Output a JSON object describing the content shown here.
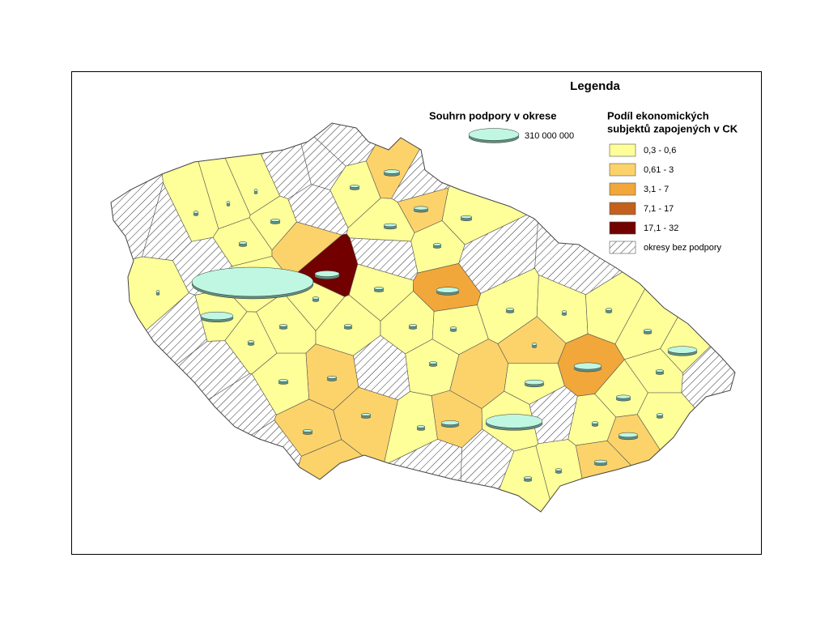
{
  "legend_title": "Legenda",
  "support": {
    "title": "Souhrn podpory v okrese",
    "reference": {
      "value": 310000000,
      "label": "310 000 000"
    }
  },
  "share": {
    "title_lines": [
      "Podíl ekonomických",
      "subjektů zapojených v CK"
    ],
    "classes": [
      {
        "label": "0,3 - 0,6",
        "color": "#ffff99"
      },
      {
        "label": "0,61 - 3",
        "color": "#fcd36a"
      },
      {
        "label": "3,1 - 7",
        "color": "#f2a73a"
      },
      {
        "label": "7,1 - 17",
        "color": "#c4601c"
      },
      {
        "label": "17,1 - 32",
        "color": "#720000"
      },
      {
        "label": "okresy bez podpory",
        "color": "hatch"
      }
    ]
  },
  "districts": [
    {
      "class_index": 5,
      "support": null
    },
    {
      "class_index": 5,
      "support": null
    },
    {
      "class_index": 0,
      "support": 2900000
    },
    {
      "class_index": 0,
      "support": 1300000
    },
    {
      "class_index": 0,
      "support": 1300000
    },
    {
      "class_index": 5,
      "support": null
    },
    {
      "class_index": 5,
      "support": null
    },
    {
      "class_index": 5,
      "support": null
    },
    {
      "class_index": 0,
      "support": 11600000
    },
    {
      "class_index": 5,
      "support": null
    },
    {
      "class_index": 0,
      "support": 11600000
    },
    {
      "class_index": 0,
      "support": 8000000
    },
    {
      "class_index": 5,
      "support": null
    },
    {
      "class_index": 0,
      "support": 1300000
    },
    {
      "class_index": 5,
      "support": null
    },
    {
      "class_index": 0,
      "support": 129000000
    },
    {
      "class_index": 0,
      "support": 1810000000
    },
    {
      "class_index": 4,
      "support": 73000000
    },
    {
      "class_index": 0,
      "support": 5200000
    },
    {
      "class_index": 1,
      "support": null
    },
    {
      "class_index": 5,
      "support": null
    },
    {
      "class_index": 0,
      "support": 11600000
    },
    {
      "class_index": 0,
      "support": 20600000
    },
    {
      "class_index": 1,
      "support": 32000000
    },
    {
      "class_index": 5,
      "support": null
    },
    {
      "class_index": 1,
      "support": 26000000
    },
    {
      "class_index": 0,
      "support": 15800000
    },
    {
      "class_index": 0,
      "support": 8000000
    },
    {
      "class_index": 2,
      "support": 63000000
    },
    {
      "class_index": 5,
      "support": null
    },
    {
      "class_index": 0,
      "support": 8000000
    },
    {
      "class_index": 0,
      "support": 2900000
    },
    {
      "class_index": 0,
      "support": 5200000
    },
    {
      "class_index": 5,
      "support": null
    },
    {
      "class_index": 0,
      "support": 8000000
    },
    {
      "class_index": 0,
      "support": 105000000
    },
    {
      "class_index": 5,
      "support": null
    },
    {
      "class_index": 0,
      "support": 8000000
    },
    {
      "class_index": 2,
      "support": 93000000
    },
    {
      "class_index": 0,
      "support": 26000000
    },
    {
      "class_index": 0,
      "support": 46000000
    },
    {
      "class_index": 1,
      "support": null
    },
    {
      "class_index": 0,
      "support": 8000000
    },
    {
      "class_index": 5,
      "support": null
    },
    {
      "class_index": 1,
      "support": 11600000
    },
    {
      "class_index": 0,
      "support": 11600000
    },
    {
      "class_index": 0,
      "support": 5200000
    },
    {
      "class_index": 0,
      "support": 8000000
    },
    {
      "class_index": 0,
      "support": 8000000
    },
    {
      "class_index": 0,
      "support": 8000000
    },
    {
      "class_index": 0,
      "support": 5200000
    },
    {
      "class_index": 5,
      "support": null
    },
    {
      "class_index": 5,
      "support": null
    },
    {
      "class_index": 1,
      "support": 11600000
    },
    {
      "class_index": 1,
      "support": 11600000
    },
    {
      "class_index": 0,
      "support": 8000000
    },
    {
      "class_index": 1,
      "support": 39000000
    },
    {
      "class_index": 0,
      "support": 395000000
    },
    {
      "class_index": 5,
      "support": null
    },
    {
      "class_index": 0,
      "support": 5200000
    },
    {
      "class_index": 1,
      "support": 46000000
    },
    {
      "class_index": 0,
      "support": 5200000
    },
    {
      "class_index": 1,
      "support": 20600000
    },
    {
      "class_index": 0,
      "support": 8000000
    },
    {
      "class_index": 5,
      "support": null
    },
    {
      "class_index": 5,
      "support": null
    },
    {
      "class_index": 0,
      "support": 5200000
    },
    {
      "class_index": 5,
      "support": null
    },
    {
      "class_index": 1,
      "support": null
    },
    {
      "class_index": 1,
      "support": 2900000
    }
  ]
}
